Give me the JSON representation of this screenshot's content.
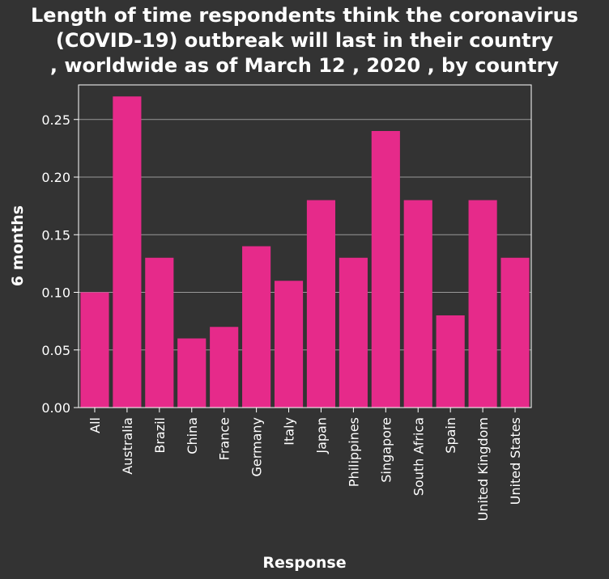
{
  "chart_data": {
    "type": "bar",
    "title_lines": [
      "Length of time respondents think the coronavirus",
      "(COVID-19) outbreak will last in their country",
      ", worldwide as of March 12 , 2020 , by country"
    ],
    "xlabel": "Response",
    "ylabel": "6 months",
    "categories": [
      "All",
      "Australia",
      "Brazil",
      "China",
      "France",
      "Germany",
      "Italy",
      "Japan",
      "Philippines",
      "Singapore",
      "South Africa",
      "Spain",
      "United Kingdom",
      "United States"
    ],
    "values": [
      0.1,
      0.27,
      0.13,
      0.06,
      0.07,
      0.14,
      0.11,
      0.18,
      0.13,
      0.24,
      0.18,
      0.08,
      0.18,
      0.13
    ],
    "yticks": [
      "0.00",
      "0.05",
      "0.10",
      "0.15",
      "0.20",
      "0.25"
    ],
    "ylim": [
      0,
      0.28
    ],
    "grid": true,
    "bar_color": "#e62a8a",
    "background_color": "#333333",
    "grid_color": "#9a9a9a"
  }
}
